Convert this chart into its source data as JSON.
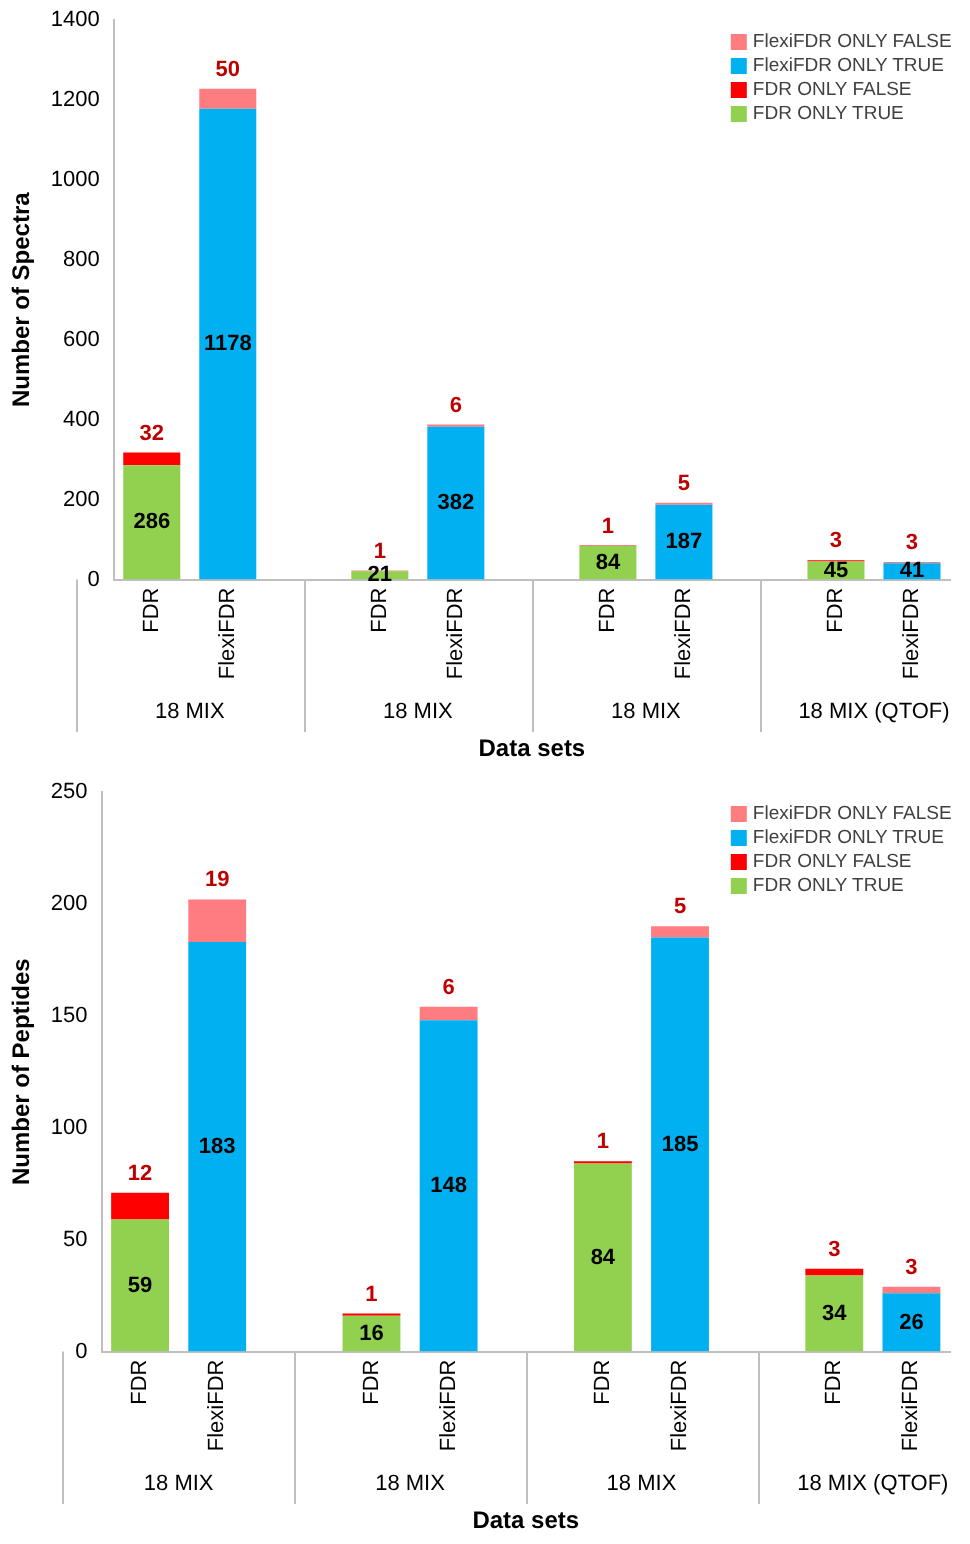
{
  "chart_data": [
    {
      "type": "bar",
      "stacked": true,
      "ylabel": "Number of Spectra",
      "xlabel": "Data sets",
      "categories": [
        "FDR",
        "FlexiFDR",
        null,
        "FDR",
        "FlexiFDR",
        null,
        "FDR",
        "FlexiFDR",
        null,
        "FDR",
        "FlexiFDR"
      ],
      "ylim": [
        0,
        1400
      ],
      "yticks": [
        0,
        200,
        400,
        600,
        800,
        1000,
        1200,
        1400
      ],
      "grid": false,
      "legend": "top right",
      "data_labels": true,
      "annotations": [
        "18 MIX",
        "18 MIX",
        "18 MIX",
        "18 MIX (QTOF)"
      ],
      "series": [
        {
          "name": "FDR ONLY TRUE",
          "color": "#92d050",
          "values": [
            286,
            null,
            null,
            21,
            null,
            null,
            84,
            null,
            null,
            45,
            null
          ]
        },
        {
          "name": "FDR ONLY FALSE",
          "color": "#ff0000",
          "values": [
            32,
            null,
            null,
            1,
            null,
            null,
            1,
            null,
            null,
            3,
            null
          ]
        },
        {
          "name": "FlexiFDR ONLY TRUE",
          "color": "#00b0f0",
          "values": [
            null,
            1178,
            null,
            null,
            382,
            null,
            null,
            187,
            null,
            null,
            41
          ]
        },
        {
          "name": "FlexiFDR ONLY FALSE",
          "color": "#ff7c80",
          "values": [
            null,
            50,
            null,
            null,
            6,
            null,
            null,
            5,
            null,
            null,
            3
          ]
        }
      ]
    },
    {
      "type": "bar",
      "stacked": true,
      "ylabel": "Number of Peptides",
      "xlabel": "Data sets",
      "categories": [
        "FDR",
        "FlexiFDR",
        null,
        "FDR",
        "FlexiFDR",
        null,
        "FDR",
        "FlexiFDR",
        null,
        "FDR",
        "FlexiFDR"
      ],
      "ylim": [
        0,
        250
      ],
      "yticks": [
        0,
        50,
        100,
        150,
        200,
        250
      ],
      "grid": false,
      "legend": "top right",
      "data_labels": true,
      "annotations": [
        "18 MIX",
        "18 MIX",
        "18 MIX",
        "18 MIX (QTOF)"
      ],
      "series": [
        {
          "name": "FDR ONLY TRUE",
          "color": "#92d050",
          "values": [
            59,
            null,
            null,
            16,
            null,
            null,
            84,
            null,
            null,
            34,
            null
          ]
        },
        {
          "name": "FDR ONLY FALSE",
          "color": "#ff0000",
          "values": [
            12,
            null,
            null,
            1,
            null,
            null,
            1,
            null,
            null,
            3,
            null
          ]
        },
        {
          "name": "FlexiFDR ONLY TRUE",
          "color": "#00b0f0",
          "values": [
            null,
            183,
            null,
            null,
            148,
            null,
            null,
            185,
            null,
            null,
            26
          ]
        },
        {
          "name": "FlexiFDR ONLY FALSE",
          "color": "#ff7c80",
          "values": [
            null,
            19,
            null,
            null,
            6,
            null,
            null,
            5,
            null,
            null,
            3
          ]
        }
      ]
    }
  ]
}
